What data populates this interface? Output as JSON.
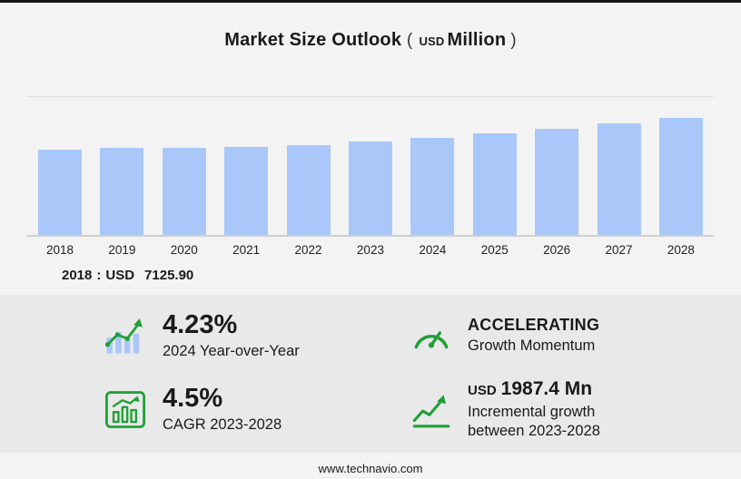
{
  "page": {
    "title": "Market Size Outlook",
    "title_unit": {
      "open": "(",
      "currency": "USD",
      "unit": "Million",
      "close": ")"
    },
    "footer": "www.technavio.com"
  },
  "chart_data": {
    "type": "bar",
    "title": "Market Size Outlook (USD Million)",
    "categories": [
      "2018",
      "2019",
      "2020",
      "2021",
      "2022",
      "2023",
      "2024",
      "2025",
      "2026",
      "2027",
      "2028"
    ],
    "values": [
      7125.9,
      7301.2,
      7248.5,
      7334.8,
      7489.6,
      7800.0,
      8129.9,
      8475.3,
      8862.1,
      9298.4,
      9787.4
    ],
    "ylabel": "USD Million",
    "ylim": [
      0,
      11500
    ],
    "grid": "single-top-gridline",
    "legend": "none",
    "bar_color": "#A9C7F8",
    "annotation": {
      "year": "2018",
      "separator": ":",
      "currency": "USD",
      "value": "7125.90"
    }
  },
  "stats": [
    {
      "icon": "yoy-bar-chart-icon",
      "value": "4.23%",
      "label": "2024 Year-over-Year"
    },
    {
      "icon": "speedometer-icon",
      "value": "ACCELERATING",
      "label": "Growth Momentum"
    },
    {
      "icon": "cagr-chart-icon",
      "value": "4.5%",
      "label": "CAGR 2023-2028"
    },
    {
      "icon": "incremental-growth-icon",
      "value_prefix": "USD",
      "value": "1987.4 Mn",
      "label": "Incremental growth between 2023-2028"
    }
  ],
  "colors": {
    "accent_green": "#21A038",
    "bar_blue": "#A9C7F8",
    "panel_bg": "#E9E9E9",
    "page_bg": "#F3F3F3"
  }
}
